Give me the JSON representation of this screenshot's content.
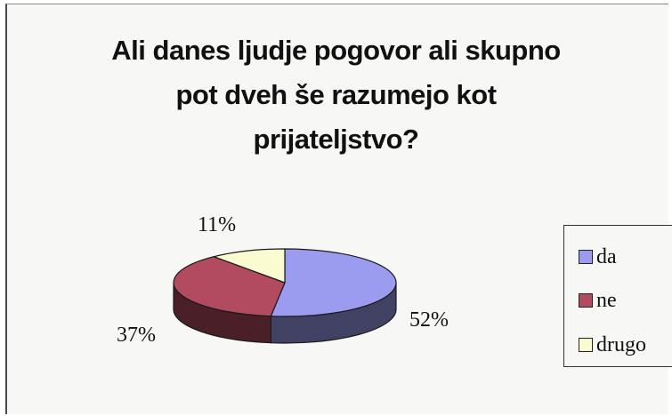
{
  "chart_data": {
    "type": "pie",
    "title_lines": [
      "Ali danes ljudje pogovor ali skupno",
      "pot dveh še razumejo kot",
      "prijateljstvo?"
    ],
    "categories": [
      "da",
      "ne",
      "drugo"
    ],
    "values": [
      52,
      37,
      11
    ],
    "value_labels": [
      "52%",
      "37%",
      "11%"
    ],
    "colors": [
      "#9b9bef",
      "#b24a60",
      "#fbfbd2"
    ],
    "legend_position": "right"
  }
}
